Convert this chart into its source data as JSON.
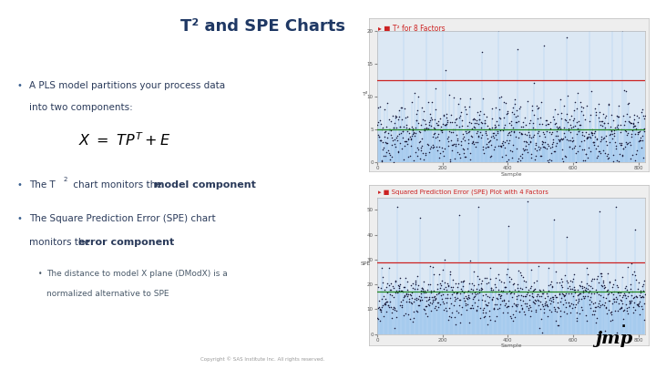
{
  "title": "T² and SPE Charts",
  "title_color": "#1f3864",
  "text_color": "#2a3a5a",
  "bullet_color": "#3a6090",
  "sub_text_color": "#4a5a6a",
  "bullet1_line1": "A PLS model partitions your process data",
  "bullet1_line2": "into two components:",
  "bullet2_pre": "The T",
  "bullet2_post": " chart monitors the ",
  "bullet2_bold": "model component",
  "bullet3_line1": "The Square Prediction Error (SPE) chart",
  "bullet3_line2": "monitors the ",
  "bullet3_bold": "error component",
  "sub_line1": "The distance to model X plane (DModX) is a",
  "sub_line2": "normalized alternative to SPE",
  "chart1_title": "T² for 8 Factors",
  "chart2_title": "Squared Prediction Error (SPE) Plot with 4 Factors",
  "chart1_ylabel": "T²",
  "chart2_ylabel": "SPE",
  "chart_xlabel": "Sample",
  "copyright_text": "Copyright © SAS Institute Inc. All rights reserved.",
  "chart_frame_bg": "#f0f0f0",
  "chart_plot_bg": "#dce8f4",
  "line_color_red": "#cc2222",
  "line_color_green": "#228822",
  "dot_color": "#1a1a3a",
  "vline_color": "#88bbee",
  "t2_ucl": 12.5,
  "t2_mean": 5.0,
  "spe_ucl": 29.0,
  "spe_mean": 17.0,
  "n_samples": 820,
  "t2_ylim": [
    0,
    20
  ],
  "t2_yticks": [
    0,
    5,
    10,
    15,
    20
  ],
  "spe_ylim": [
    0,
    55
  ],
  "spe_yticks": [
    0,
    10,
    20,
    30,
    40,
    50
  ],
  "x_ticks": [
    0,
    200,
    400,
    600,
    800
  ]
}
